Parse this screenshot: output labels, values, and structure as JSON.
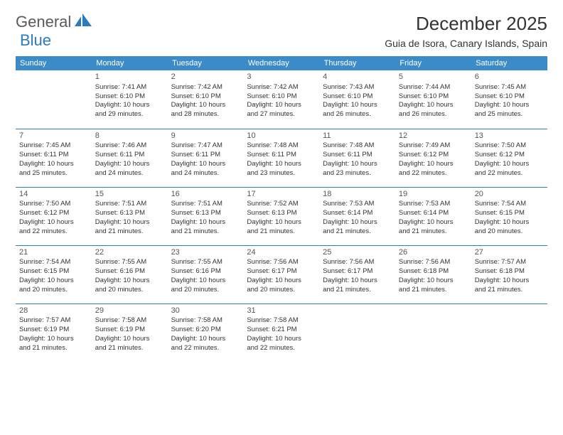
{
  "logo": {
    "part1": "General",
    "part2": "Blue"
  },
  "title": "December 2025",
  "location": "Guia de Isora, Canary Islands, Spain",
  "colors": {
    "header_bg": "#3b8bc9",
    "header_text": "#ffffff",
    "border": "#2b7bbf",
    "logo_gray": "#5a5a5a",
    "logo_blue": "#2b7bbf",
    "text": "#333333"
  },
  "typography": {
    "title_fontsize": 26,
    "location_fontsize": 14,
    "dayheader_fontsize": 11,
    "cell_fontsize": 9.5,
    "daynum_fontsize": 11
  },
  "day_headers": [
    "Sunday",
    "Monday",
    "Tuesday",
    "Wednesday",
    "Thursday",
    "Friday",
    "Saturday"
  ],
  "weeks": [
    [
      null,
      {
        "n": "1",
        "sr": "Sunrise: 7:41 AM",
        "ss": "Sunset: 6:10 PM",
        "d1": "Daylight: 10 hours",
        "d2": "and 29 minutes."
      },
      {
        "n": "2",
        "sr": "Sunrise: 7:42 AM",
        "ss": "Sunset: 6:10 PM",
        "d1": "Daylight: 10 hours",
        "d2": "and 28 minutes."
      },
      {
        "n": "3",
        "sr": "Sunrise: 7:42 AM",
        "ss": "Sunset: 6:10 PM",
        "d1": "Daylight: 10 hours",
        "d2": "and 27 minutes."
      },
      {
        "n": "4",
        "sr": "Sunrise: 7:43 AM",
        "ss": "Sunset: 6:10 PM",
        "d1": "Daylight: 10 hours",
        "d2": "and 26 minutes."
      },
      {
        "n": "5",
        "sr": "Sunrise: 7:44 AM",
        "ss": "Sunset: 6:10 PM",
        "d1": "Daylight: 10 hours",
        "d2": "and 26 minutes."
      },
      {
        "n": "6",
        "sr": "Sunrise: 7:45 AM",
        "ss": "Sunset: 6:10 PM",
        "d1": "Daylight: 10 hours",
        "d2": "and 25 minutes."
      }
    ],
    [
      {
        "n": "7",
        "sr": "Sunrise: 7:45 AM",
        "ss": "Sunset: 6:11 PM",
        "d1": "Daylight: 10 hours",
        "d2": "and 25 minutes."
      },
      {
        "n": "8",
        "sr": "Sunrise: 7:46 AM",
        "ss": "Sunset: 6:11 PM",
        "d1": "Daylight: 10 hours",
        "d2": "and 24 minutes."
      },
      {
        "n": "9",
        "sr": "Sunrise: 7:47 AM",
        "ss": "Sunset: 6:11 PM",
        "d1": "Daylight: 10 hours",
        "d2": "and 24 minutes."
      },
      {
        "n": "10",
        "sr": "Sunrise: 7:48 AM",
        "ss": "Sunset: 6:11 PM",
        "d1": "Daylight: 10 hours",
        "d2": "and 23 minutes."
      },
      {
        "n": "11",
        "sr": "Sunrise: 7:48 AM",
        "ss": "Sunset: 6:11 PM",
        "d1": "Daylight: 10 hours",
        "d2": "and 23 minutes."
      },
      {
        "n": "12",
        "sr": "Sunrise: 7:49 AM",
        "ss": "Sunset: 6:12 PM",
        "d1": "Daylight: 10 hours",
        "d2": "and 22 minutes."
      },
      {
        "n": "13",
        "sr": "Sunrise: 7:50 AM",
        "ss": "Sunset: 6:12 PM",
        "d1": "Daylight: 10 hours",
        "d2": "and 22 minutes."
      }
    ],
    [
      {
        "n": "14",
        "sr": "Sunrise: 7:50 AM",
        "ss": "Sunset: 6:12 PM",
        "d1": "Daylight: 10 hours",
        "d2": "and 22 minutes."
      },
      {
        "n": "15",
        "sr": "Sunrise: 7:51 AM",
        "ss": "Sunset: 6:13 PM",
        "d1": "Daylight: 10 hours",
        "d2": "and 21 minutes."
      },
      {
        "n": "16",
        "sr": "Sunrise: 7:51 AM",
        "ss": "Sunset: 6:13 PM",
        "d1": "Daylight: 10 hours",
        "d2": "and 21 minutes."
      },
      {
        "n": "17",
        "sr": "Sunrise: 7:52 AM",
        "ss": "Sunset: 6:13 PM",
        "d1": "Daylight: 10 hours",
        "d2": "and 21 minutes."
      },
      {
        "n": "18",
        "sr": "Sunrise: 7:53 AM",
        "ss": "Sunset: 6:14 PM",
        "d1": "Daylight: 10 hours",
        "d2": "and 21 minutes."
      },
      {
        "n": "19",
        "sr": "Sunrise: 7:53 AM",
        "ss": "Sunset: 6:14 PM",
        "d1": "Daylight: 10 hours",
        "d2": "and 21 minutes."
      },
      {
        "n": "20",
        "sr": "Sunrise: 7:54 AM",
        "ss": "Sunset: 6:15 PM",
        "d1": "Daylight: 10 hours",
        "d2": "and 20 minutes."
      }
    ],
    [
      {
        "n": "21",
        "sr": "Sunrise: 7:54 AM",
        "ss": "Sunset: 6:15 PM",
        "d1": "Daylight: 10 hours",
        "d2": "and 20 minutes."
      },
      {
        "n": "22",
        "sr": "Sunrise: 7:55 AM",
        "ss": "Sunset: 6:16 PM",
        "d1": "Daylight: 10 hours",
        "d2": "and 20 minutes."
      },
      {
        "n": "23",
        "sr": "Sunrise: 7:55 AM",
        "ss": "Sunset: 6:16 PM",
        "d1": "Daylight: 10 hours",
        "d2": "and 20 minutes."
      },
      {
        "n": "24",
        "sr": "Sunrise: 7:56 AM",
        "ss": "Sunset: 6:17 PM",
        "d1": "Daylight: 10 hours",
        "d2": "and 20 minutes."
      },
      {
        "n": "25",
        "sr": "Sunrise: 7:56 AM",
        "ss": "Sunset: 6:17 PM",
        "d1": "Daylight: 10 hours",
        "d2": "and 21 minutes."
      },
      {
        "n": "26",
        "sr": "Sunrise: 7:56 AM",
        "ss": "Sunset: 6:18 PM",
        "d1": "Daylight: 10 hours",
        "d2": "and 21 minutes."
      },
      {
        "n": "27",
        "sr": "Sunrise: 7:57 AM",
        "ss": "Sunset: 6:18 PM",
        "d1": "Daylight: 10 hours",
        "d2": "and 21 minutes."
      }
    ],
    [
      {
        "n": "28",
        "sr": "Sunrise: 7:57 AM",
        "ss": "Sunset: 6:19 PM",
        "d1": "Daylight: 10 hours",
        "d2": "and 21 minutes."
      },
      {
        "n": "29",
        "sr": "Sunrise: 7:58 AM",
        "ss": "Sunset: 6:19 PM",
        "d1": "Daylight: 10 hours",
        "d2": "and 21 minutes."
      },
      {
        "n": "30",
        "sr": "Sunrise: 7:58 AM",
        "ss": "Sunset: 6:20 PM",
        "d1": "Daylight: 10 hours",
        "d2": "and 22 minutes."
      },
      {
        "n": "31",
        "sr": "Sunrise: 7:58 AM",
        "ss": "Sunset: 6:21 PM",
        "d1": "Daylight: 10 hours",
        "d2": "and 22 minutes."
      },
      null,
      null,
      null
    ]
  ]
}
